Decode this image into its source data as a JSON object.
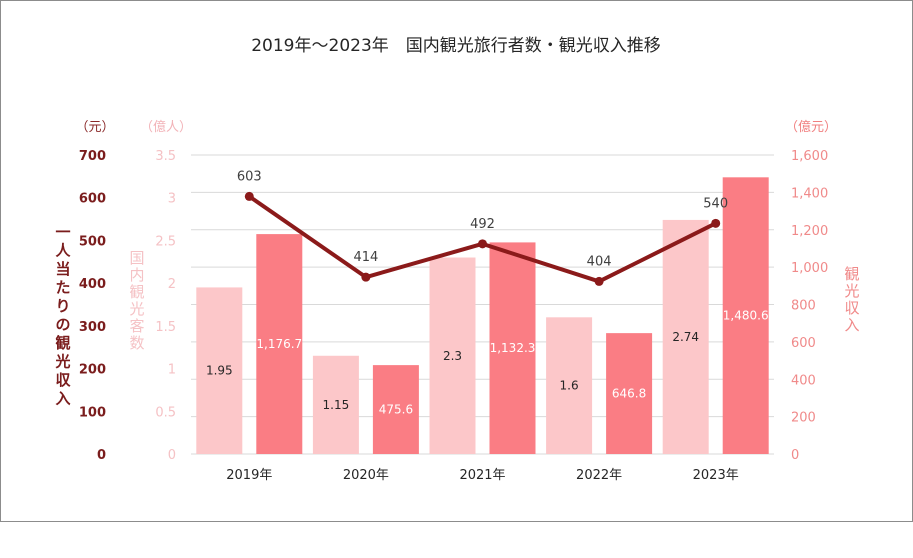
{
  "chart_data": {
    "type": "bar",
    "title": "2019年～2023年　国内観光旅行者数・観光収入推移",
    "categories": [
      "2019年",
      "2020年",
      "2021年",
      "2022年",
      "2023年"
    ],
    "series": [
      {
        "name": "国内観光客数",
        "type": "bar",
        "axis": "left-inner",
        "unit": "（億人）",
        "color": "#fcc7c9",
        "values": [
          1.95,
          1.15,
          2.3,
          1.6,
          2.74
        ],
        "labels": [
          "1.95",
          "1.15",
          "2.3",
          "1.6",
          "2.74"
        ]
      },
      {
        "name": "観光収入",
        "type": "bar",
        "axis": "right",
        "unit": "（億元）",
        "color": "#fa7d84",
        "values": [
          1176.7,
          475.6,
          1132.3,
          646.8,
          1480.6
        ],
        "labels": [
          "1,176.7",
          "475.6",
          "1,132.3",
          "646.8",
          "1,480.6"
        ]
      },
      {
        "name": "一人当たりの観光収入",
        "type": "line",
        "axis": "left-outer",
        "unit": "（元）",
        "color": "#8b1a1a",
        "values": [
          603,
          414,
          492,
          404,
          540
        ],
        "labels": [
          "603",
          "414",
          "492",
          "404",
          "540"
        ]
      }
    ],
    "axes": {
      "left_outer": {
        "title": "一人当たりの観光収入",
        "unit": "（元）",
        "ylim": [
          0,
          700
        ],
        "ticks": [
          "0",
          "100",
          "200",
          "300",
          "400",
          "500",
          "600",
          "700"
        ]
      },
      "left_inner": {
        "title": "国内観光客数",
        "unit": "（億人）",
        "ylim": [
          0,
          3.5
        ],
        "ticks": [
          "0",
          "0.5",
          "1",
          "1.5",
          "2",
          "2.5",
          "3",
          "3.5"
        ]
      },
      "right": {
        "title": "観光収入",
        "unit": "（億元）",
        "ylim": [
          0,
          1600
        ],
        "ticks": [
          "0",
          "200",
          "400",
          "600",
          "800",
          "1,000",
          "1,200",
          "1,400",
          "1,600"
        ]
      }
    },
    "grid": true,
    "legend": "none"
  }
}
